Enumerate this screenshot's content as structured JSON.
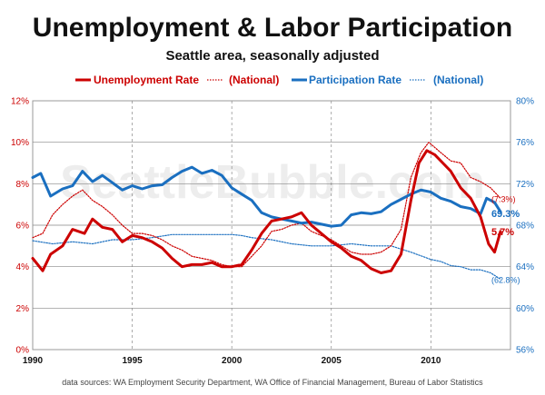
{
  "chart_data": {
    "type": "line",
    "title": "Unemployment & Labor Participation",
    "subtitle": "Seattle area, seasonally adjusted",
    "source": "data sources: WA Employment Security Department, WA Office of Financial Management, Bureau of Labor Statistics",
    "watermark": "SeattleBubble.com",
    "x_axis": {
      "min": 1990,
      "max": 2014,
      "ticks": [
        "1990",
        "1995",
        "2000",
        "2005",
        "2010"
      ],
      "tick_values": [
        1990,
        1995,
        2000,
        2005,
        2010
      ]
    },
    "y_left": {
      "min": 0,
      "max": 12,
      "ticks": [
        "0%",
        "2%",
        "4%",
        "6%",
        "8%",
        "10%",
        "12%"
      ],
      "tick_values": [
        0,
        2,
        4,
        6,
        8,
        10,
        12
      ],
      "color": "#cc0000"
    },
    "y_right": {
      "min": 56,
      "max": 80,
      "ticks": [
        "56%",
        "60%",
        "64%",
        "68%",
        "72%",
        "76%",
        "80%"
      ],
      "tick_values": [
        56,
        60,
        64,
        68,
        72,
        76,
        80
      ],
      "color": "#1a6fc0"
    },
    "grid": true,
    "legend_position": "top",
    "series": [
      {
        "name": "Unemployment Rate",
        "axis": "left",
        "color": "#cc0000",
        "style": "solid",
        "end_label": "5.7%",
        "points": [
          [
            1990,
            4.4
          ],
          [
            1990.5,
            3.8
          ],
          [
            1990.9,
            4.6
          ],
          [
            1991.5,
            5.0
          ],
          [
            1992,
            5.8
          ],
          [
            1992.6,
            5.6
          ],
          [
            1993,
            6.3
          ],
          [
            1993.5,
            5.9
          ],
          [
            1994,
            5.8
          ],
          [
            1994.5,
            5.2
          ],
          [
            1995,
            5.5
          ],
          [
            1995.5,
            5.4
          ],
          [
            1996,
            5.2
          ],
          [
            1996.5,
            4.9
          ],
          [
            1997,
            4.4
          ],
          [
            1997.5,
            4.0
          ],
          [
            1998,
            4.1
          ],
          [
            1998.5,
            4.1
          ],
          [
            1999,
            4.2
          ],
          [
            1999.5,
            4.0
          ],
          [
            2000,
            4.0
          ],
          [
            2000.5,
            4.1
          ],
          [
            2001,
            4.8
          ],
          [
            2001.5,
            5.6
          ],
          [
            2002,
            6.2
          ],
          [
            2002.5,
            6.3
          ],
          [
            2003,
            6.4
          ],
          [
            2003.5,
            6.6
          ],
          [
            2004,
            6.0
          ],
          [
            2004.5,
            5.6
          ],
          [
            2005,
            5.2
          ],
          [
            2005.5,
            4.9
          ],
          [
            2006,
            4.5
          ],
          [
            2006.5,
            4.3
          ],
          [
            2007,
            3.9
          ],
          [
            2007.5,
            3.7
          ],
          [
            2008,
            3.8
          ],
          [
            2008.5,
            4.6
          ],
          [
            2009,
            7.2
          ],
          [
            2009.4,
            9.0
          ],
          [
            2009.8,
            9.6
          ],
          [
            2010.2,
            9.4
          ],
          [
            2010.6,
            9.0
          ],
          [
            2011,
            8.6
          ],
          [
            2011.5,
            7.8
          ],
          [
            2012,
            7.3
          ],
          [
            2012.5,
            6.4
          ],
          [
            2012.9,
            5.1
          ],
          [
            2013.2,
            4.7
          ],
          [
            2013.5,
            5.7
          ]
        ]
      },
      {
        "name": "(National)",
        "axis": "left",
        "color": "#cc0000",
        "style": "dotted",
        "end_label": "(7.3%)",
        "points": [
          [
            1990,
            5.4
          ],
          [
            1990.5,
            5.6
          ],
          [
            1991,
            6.5
          ],
          [
            1991.5,
            7.0
          ],
          [
            1992,
            7.4
          ],
          [
            1992.5,
            7.7
          ],
          [
            1993,
            7.2
          ],
          [
            1993.5,
            6.9
          ],
          [
            1994,
            6.5
          ],
          [
            1994.5,
            6.0
          ],
          [
            1995,
            5.6
          ],
          [
            1995.5,
            5.6
          ],
          [
            1996,
            5.5
          ],
          [
            1996.5,
            5.3
          ],
          [
            1997,
            5.0
          ],
          [
            1997.5,
            4.8
          ],
          [
            1998,
            4.5
          ],
          [
            1998.5,
            4.4
          ],
          [
            1999,
            4.3
          ],
          [
            1999.5,
            4.1
          ],
          [
            2000,
            4.0
          ],
          [
            2000.5,
            4.0
          ],
          [
            2001,
            4.5
          ],
          [
            2001.5,
            5.0
          ],
          [
            2002,
            5.7
          ],
          [
            2002.5,
            5.8
          ],
          [
            2003,
            6.0
          ],
          [
            2003.5,
            6.1
          ],
          [
            2004,
            5.7
          ],
          [
            2004.5,
            5.5
          ],
          [
            2005,
            5.3
          ],
          [
            2005.5,
            5.0
          ],
          [
            2006,
            4.7
          ],
          [
            2006.5,
            4.6
          ],
          [
            2007,
            4.6
          ],
          [
            2007.5,
            4.7
          ],
          [
            2008,
            5.0
          ],
          [
            2008.5,
            5.8
          ],
          [
            2009,
            8.3
          ],
          [
            2009.5,
            9.5
          ],
          [
            2009.9,
            10.0
          ],
          [
            2010.5,
            9.5
          ],
          [
            2011,
            9.1
          ],
          [
            2011.5,
            9.0
          ],
          [
            2012,
            8.3
          ],
          [
            2012.5,
            8.1
          ],
          [
            2013,
            7.8
          ],
          [
            2013.5,
            7.3
          ]
        ]
      },
      {
        "name": "Participation Rate",
        "axis": "right",
        "color": "#1a6fc0",
        "style": "solid",
        "end_label": "69.3%",
        "points": [
          [
            1990,
            72.6
          ],
          [
            1990.4,
            73.0
          ],
          [
            1990.9,
            70.8
          ],
          [
            1991.5,
            71.5
          ],
          [
            1992,
            71.8
          ],
          [
            1992.5,
            73.2
          ],
          [
            1993,
            72.2
          ],
          [
            1993.5,
            72.8
          ],
          [
            1994,
            72.1
          ],
          [
            1994.5,
            71.4
          ],
          [
            1995,
            71.8
          ],
          [
            1995.5,
            71.5
          ],
          [
            1996,
            71.8
          ],
          [
            1996.5,
            71.9
          ],
          [
            1997,
            72.6
          ],
          [
            1997.5,
            73.2
          ],
          [
            1998,
            73.6
          ],
          [
            1998.5,
            73.0
          ],
          [
            1999,
            73.3
          ],
          [
            1999.5,
            72.8
          ],
          [
            2000,
            71.6
          ],
          [
            2000.5,
            71.0
          ],
          [
            2001,
            70.4
          ],
          [
            2001.5,
            69.2
          ],
          [
            2002,
            68.8
          ],
          [
            2002.5,
            68.6
          ],
          [
            2003,
            68.4
          ],
          [
            2003.5,
            68.2
          ],
          [
            2004,
            68.3
          ],
          [
            2004.5,
            68.1
          ],
          [
            2005,
            67.9
          ],
          [
            2005.5,
            68.0
          ],
          [
            2006,
            69.0
          ],
          [
            2006.5,
            69.2
          ],
          [
            2007,
            69.1
          ],
          [
            2007.5,
            69.3
          ],
          [
            2008,
            70.0
          ],
          [
            2008.5,
            70.5
          ],
          [
            2009,
            71.0
          ],
          [
            2009.5,
            71.4
          ],
          [
            2010,
            71.2
          ],
          [
            2010.5,
            70.6
          ],
          [
            2011,
            70.3
          ],
          [
            2011.5,
            69.8
          ],
          [
            2012,
            69.6
          ],
          [
            2012.5,
            69.1
          ],
          [
            2012.8,
            70.6
          ],
          [
            2013.2,
            70.2
          ],
          [
            2013.5,
            69.3
          ]
        ]
      },
      {
        "name": "(National)",
        "axis": "right",
        "color": "#1a6fc0",
        "style": "dotted",
        "end_label": "(62.8%)",
        "points": [
          [
            1990,
            66.5
          ],
          [
            1991,
            66.2
          ],
          [
            1992,
            66.4
          ],
          [
            1993,
            66.2
          ],
          [
            1994,
            66.6
          ],
          [
            1995,
            66.6
          ],
          [
            1996,
            66.8
          ],
          [
            1997,
            67.1
          ],
          [
            1998,
            67.1
          ],
          [
            1999,
            67.1
          ],
          [
            2000,
            67.1
          ],
          [
            2000.5,
            67.0
          ],
          [
            2001,
            66.8
          ],
          [
            2002,
            66.6
          ],
          [
            2003,
            66.2
          ],
          [
            2004,
            66.0
          ],
          [
            2005,
            66.0
          ],
          [
            2006,
            66.2
          ],
          [
            2007,
            66.0
          ],
          [
            2008,
            66.0
          ],
          [
            2009,
            65.4
          ],
          [
            2010,
            64.7
          ],
          [
            2010.5,
            64.5
          ],
          [
            2011,
            64.1
          ],
          [
            2011.5,
            64.0
          ],
          [
            2012,
            63.7
          ],
          [
            2012.5,
            63.7
          ],
          [
            2013,
            63.4
          ],
          [
            2013.5,
            62.8
          ]
        ]
      }
    ]
  }
}
